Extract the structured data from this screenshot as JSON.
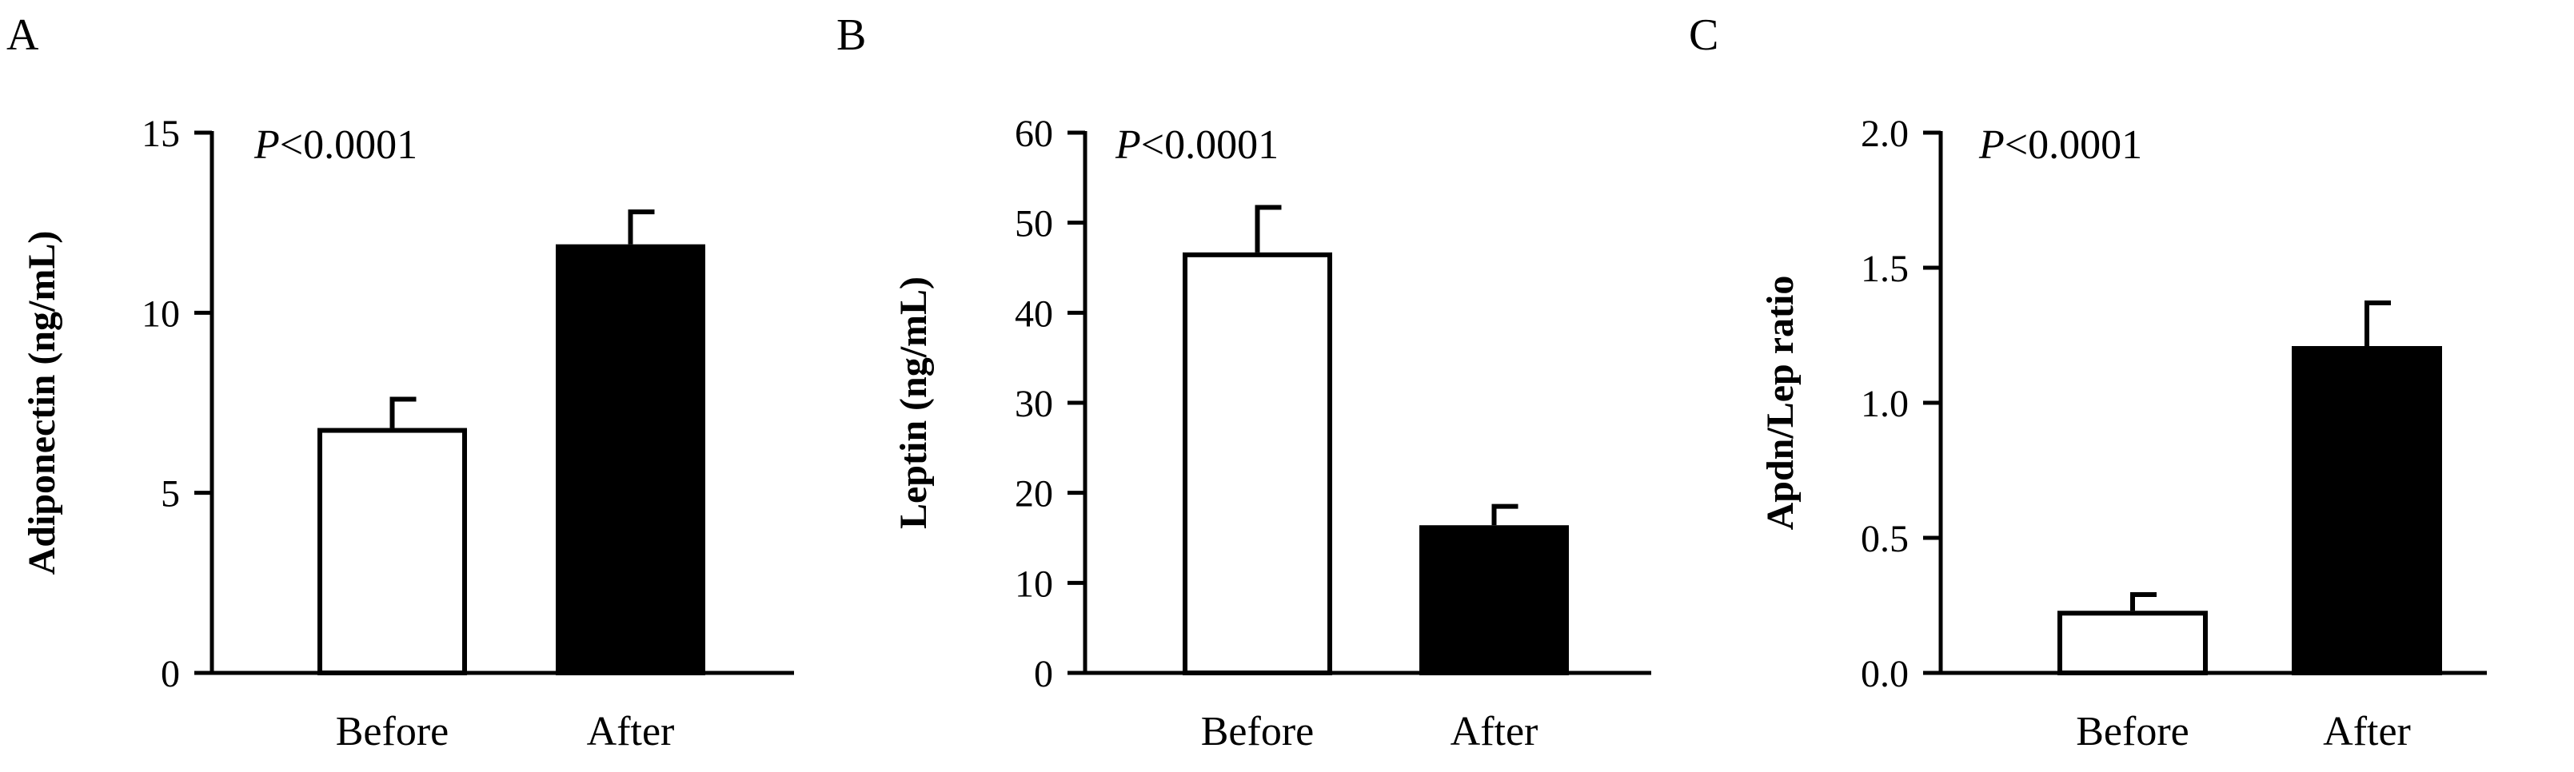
{
  "chart_data": [
    {
      "panel": "A",
      "type": "bar",
      "categories": [
        "Before",
        "After"
      ],
      "values": [
        6.8,
        11.9
      ],
      "errors": [
        0.8,
        0.9
      ],
      "fills": [
        "#ffffff",
        "#000000"
      ],
      "ylabel": "Adiponectin (ng/mL)",
      "ylim": [
        0,
        15
      ],
      "yticks": [
        0,
        5,
        10,
        15
      ],
      "ytick_labels": [
        "0",
        "5",
        "10",
        "15"
      ],
      "annotation_italic": "P",
      "annotation_rest": "<0.0001",
      "grid": false
    },
    {
      "panel": "B",
      "type": "bar",
      "categories": [
        "Before",
        "After"
      ],
      "values": [
        46.7,
        16.4
      ],
      "errors": [
        5.0,
        2.1
      ],
      "fills": [
        "#ffffff",
        "#000000"
      ],
      "ylabel": "Leptin (ng/mL)",
      "ylim": [
        0,
        60
      ],
      "yticks": [
        0,
        10,
        20,
        30,
        40,
        50,
        60
      ],
      "ytick_labels": [
        "0",
        "10",
        "20",
        "30",
        "40",
        "50",
        "60"
      ],
      "annotation_italic": "P",
      "annotation_rest": "<0.0001",
      "grid": false
    },
    {
      "panel": "C",
      "type": "bar",
      "categories": [
        "Before",
        "After"
      ],
      "values": [
        0.23,
        1.21
      ],
      "errors": [
        0.06,
        0.16
      ],
      "fills": [
        "#ffffff",
        "#000000"
      ],
      "ylabel": "Apdn/Lep ratio",
      "ylim": [
        0,
        2.0
      ],
      "yticks": [
        0,
        0.5,
        1.0,
        1.5,
        2.0
      ],
      "ytick_labels": [
        "0.0",
        "0.5",
        "1.0",
        "1.5",
        "2.0"
      ],
      "annotation_italic": "P",
      "annotation_rest": "<0.0001",
      "grid": false
    }
  ]
}
